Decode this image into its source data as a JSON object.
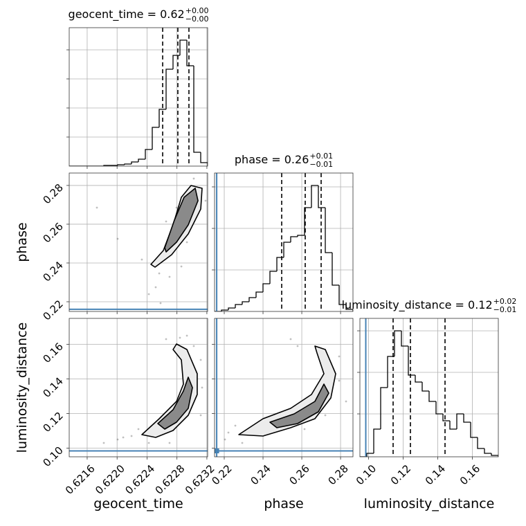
{
  "chart_data": [
    {
      "type": "histogram",
      "title": "geocent_time = 0.62",
      "title_sup": "+0.00",
      "title_sub": "−0.00",
      "bins": [
        0.62136,
        0.6214525,
        0.621545,
        0.6216375,
        0.62173,
        0.6218225,
        0.621915,
        0.6220075,
        0.6221,
        0.6221925,
        0.622285,
        0.6223775,
        0.62247,
        0.6225625,
        0.622655,
        0.6227475,
        0.62284,
        0.6229325,
        0.623025,
        0.6231175,
        0.62321
      ],
      "values": [
        0,
        0,
        0,
        0,
        0,
        1,
        1,
        2,
        3,
        6,
        10,
        24,
        56,
        82,
        140,
        160,
        182,
        145,
        20,
        5
      ],
      "quantiles": [
        0.622609,
        0.622812,
        0.62296
      ],
      "xlim": [
        0.62136,
        0.62321
      ],
      "xticks": [
        0.6216,
        {
          "value": 0.622,
          "label": "0.6220"
        },
        0.6224,
        0.6228,
        0.6232
      ],
      "ylim": [
        0,
        200
      ],
      "yticks": [
        42,
        84,
        126,
        168
      ],
      "xticklabels": false,
      "grid": true,
      "color": "#000000"
    },
    {
      "type": "scatter-contour",
      "ylabel": "phase",
      "x": [
        0.622563,
        0.622516,
        0.622424,
        0.622701,
        0.622331,
        0.622008,
        0.62173,
        0.622794,
        0.623025,
        0.623182,
        0.622859,
        0.622581,
        0.622655,
        0.622933
      ],
      "y": [
        0.23464,
        0.2275,
        0.22393,
        0.23285,
        0.24178,
        0.25249,
        0.26855,
        0.26855,
        0.28354,
        0.27212,
        0.2382,
        0.21928,
        0.26141,
        0.2507
      ],
      "contours": [
        {
          "x": [
            0.622452,
            0.622618,
            0.622748,
            0.622859,
            0.622988,
            0.623136,
            0.623118,
            0.622951,
            0.622729,
            0.622507
          ],
          "y": [
            0.23928,
            0.24642,
            0.25963,
            0.27391,
            0.27997,
            0.27855,
            0.26784,
            0.25498,
            0.24427,
            0.23785
          ]
        },
        {
          "x": [
            0.622637,
            0.622766,
            0.622896,
            0.623044,
            0.623081,
            0.622951,
            0.622794,
            0.622655
          ],
          "y": [
            0.24784,
            0.26212,
            0.27391,
            0.27855,
            0.27212,
            0.25963,
            0.2507,
            0.2457
          ]
        }
      ],
      "contour_fills": [
        "#ececec",
        "#8a8a8a"
      ],
      "truth_y": 0.2161,
      "truth_color": "#4682b4",
      "xlim": [
        0.62136,
        0.62321
      ],
      "xticks": [
        0.6216,
        {
          "value": 0.622,
          "label": "0.6220"
        },
        0.6224,
        0.6228,
        0.6232
      ],
      "ylim": [
        0.215,
        0.2864
      ],
      "yticks": [
        0.22,
        0.24,
        0.26,
        0.28
      ],
      "xticklabels": false,
      "yticklabels": true,
      "grid": true,
      "color": "#000000"
    },
    {
      "type": "histogram",
      "title": "phase = 0.26",
      "title_sup": "+0.01",
      "title_sub": "−0.01",
      "bins": [
        0.215,
        0.21857,
        0.22214,
        0.22571,
        0.22928,
        0.23285,
        0.23642,
        0.23999,
        0.24356,
        0.24713,
        0.2507,
        0.25427,
        0.25784,
        0.26141,
        0.26498,
        0.26855,
        0.27212,
        0.27569,
        0.27926,
        0.28283,
        0.2864
      ],
      "values": [
        0,
        2,
        5,
        10,
        14,
        20,
        28,
        40,
        58,
        78,
        100,
        108,
        110,
        150,
        182,
        150,
        85,
        38,
        10,
        3
      ],
      "quantiles": [
        0.24963,
        0.26177,
        0.26998
      ],
      "truth": 0.2161,
      "truth_color": "#4682b4",
      "xlim": [
        0.215,
        0.2864
      ],
      "xticks": [
        0.22,
        0.24,
        0.26,
        0.28
      ],
      "ylim": [
        0,
        200
      ],
      "yticks": [
        60,
        120,
        180
      ],
      "xticklabels": false,
      "grid": true,
      "color": "#000000"
    },
    {
      "type": "scatter-contour",
      "xlabel": "geocent_time",
      "ylabel": "luminosity_distance",
      "x": [
        0.6218225,
        0.622008,
        0.622193,
        0.622655,
        0.62284,
        0.623025,
        0.623118,
        0.622285,
        0.623136,
        0.622701,
        0.622933,
        0.622424,
        0.623118,
        0.622082
      ],
      "y": [
        0.103,
        0.105,
        0.107,
        0.163,
        0.1638,
        0.159,
        0.151,
        0.111,
        0.135,
        0.103,
        0.165,
        0.103,
        0.119,
        0.1062
      ],
      "contours": [
        {
          "x": [
            0.622331,
            0.622563,
            0.622794,
            0.622886,
            0.622859,
            0.622748,
            0.622794,
            0.622933,
            0.623071,
            0.623071,
            0.622951,
            0.622748,
            0.622516
          ],
          "y": [
            0.1078,
            0.117,
            0.127,
            0.137,
            0.151,
            0.157,
            0.1602,
            0.157,
            0.143,
            0.131,
            0.119,
            0.1102,
            0.1062
          ]
        },
        {
          "x": [
            0.622544,
            0.622748,
            0.622886,
            0.622951,
            0.623007,
            0.622951,
            0.622794,
            0.622637
          ],
          "y": [
            0.1142,
            0.1222,
            0.133,
            0.141,
            0.135,
            0.123,
            0.115,
            0.111
          ]
        }
      ],
      "contour_fills": [
        "#ececec",
        "#8a8a8a"
      ],
      "truth_y": 0.0984,
      "truth_color": "#4682b4",
      "xlim": [
        0.62136,
        0.62321
      ],
      "xticks": [
        0.6216,
        {
          "value": 0.622,
          "label": "0.6220"
        },
        0.6224,
        0.6228,
        0.6232
      ],
      "ylim": [
        0.095,
        0.175
      ],
      "yticks": [
        {
          "value": 0.1,
          "label": "0.10"
        },
        0.12,
        0.14,
        0.16
      ],
      "xticklabels": true,
      "yticklabels": true,
      "grid": true,
      "color": "#000000"
    },
    {
      "type": "scatter-contour",
      "xlabel": "phase",
      "x": [
        0.22214,
        0.22928,
        0.22036,
        0.25427,
        0.25784,
        0.27926,
        0.27212,
        0.26141,
        0.23464,
        0.27926,
        0.22571,
        0.28283
      ],
      "y": [
        0.109,
        0.103,
        0.105,
        0.163,
        0.159,
        0.139,
        0.119,
        0.111,
        0.111,
        0.153,
        0.113,
        0.127
      ],
      "contours": [
        {
          "x": [
            0.2275,
            0.23999,
            0.25427,
            0.26498,
            0.27141,
            0.26784,
            0.26677,
            0.27212,
            0.27748,
            0.27498,
            0.26677,
            0.25427,
            0.23999
          ],
          "y": [
            0.1078,
            0.117,
            0.123,
            0.131,
            0.143,
            0.155,
            0.159,
            0.157,
            0.143,
            0.129,
            0.117,
            0.1118,
            0.107
          ]
        },
        {
          "x": [
            0.24356,
            0.25606,
            0.26677,
            0.27141,
            0.2739,
            0.26855,
            0.25784,
            0.24713
          ],
          "y": [
            0.115,
            0.1198,
            0.127,
            0.137,
            0.1318,
            0.121,
            0.1142,
            0.1118
          ]
        }
      ],
      "contour_fills": [
        "#ececec",
        "#8a8a8a"
      ],
      "truth_x": 0.2161,
      "truth_y": 0.0984,
      "truth_color": "#4682b4",
      "xlim": [
        0.215,
        0.2864
      ],
      "xticks": [
        0.22,
        0.24,
        0.26,
        0.28
      ],
      "ylim": [
        0.095,
        0.175
      ],
      "yticks": [
        {
          "value": 0.1,
          "label": "0.10"
        },
        0.12,
        0.14,
        0.16
      ],
      "xticklabels": true,
      "yticklabels": false,
      "grid": true,
      "color": "#000000"
    },
    {
      "type": "histogram",
      "title": "luminosity_distance = 0.12",
      "title_sup": "+0.02",
      "title_sub": "−0.01",
      "xlabel": "luminosity_distance",
      "bins": [
        0.095,
        0.099,
        0.103,
        0.107,
        0.111,
        0.115,
        0.119,
        0.123,
        0.127,
        0.131,
        0.135,
        0.139,
        0.143,
        0.147,
        0.151,
        0.155,
        0.159,
        0.163,
        0.167,
        0.171,
        0.175
      ],
      "values": [
        0,
        5,
        40,
        100,
        145,
        182,
        160,
        118,
        108,
        95,
        80,
        62,
        52,
        40,
        62,
        50,
        28,
        12,
        5,
        2
      ],
      "quantiles": [
        0.1142,
        0.1242,
        0.1442
      ],
      "truth": 0.0984,
      "truth_color": "#4682b4",
      "xlim": [
        0.095,
        0.175
      ],
      "xticks": [
        {
          "value": 0.1,
          "label": "0.10"
        },
        0.12,
        0.14,
        0.16
      ],
      "ylim": [
        0,
        200
      ],
      "yticks": [
        62,
        122,
        182
      ],
      "xticklabels": true,
      "grid": true,
      "color": "#000000"
    }
  ]
}
